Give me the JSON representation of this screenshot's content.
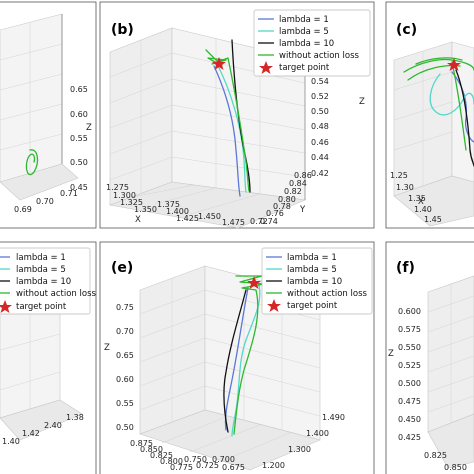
{
  "colors": {
    "lambda1": "#5b78d6",
    "lambda5": "#52d8c6",
    "lambda10": "#111111",
    "no_action_loss": "#2eb82e",
    "target": "#d62728"
  },
  "legend": {
    "lambda1": "lambda = 1",
    "lambda5": "lambda = 5",
    "lambda10": "lambda = 10",
    "no_action_loss": "without action loss",
    "target": "target point"
  },
  "panels": {
    "a": {
      "label": "",
      "z_label": "Z",
      "z_ticks": [
        "0.65",
        "0.60",
        "0.55",
        "0.50",
        "0.45"
      ],
      "bottom_ticks": [
        "0.69",
        "0.70",
        "0.71"
      ]
    },
    "b": {
      "label": "(b)",
      "x_label": "X",
      "y_label": "Y",
      "z_label": "Z",
      "z_ticks": [
        "0.54",
        "0.52",
        "0.50",
        "0.48",
        "0.46",
        "0.44",
        "0.42"
      ],
      "x_ticks": [
        "1.275",
        "1.300",
        "1.325",
        "1.350",
        "1.375",
        "1.400",
        "1.425",
        "1.450",
        "1.475"
      ],
      "y_ticks": [
        "0.86",
        "0.84",
        "0.82",
        "0.80",
        "0.78",
        "0.76",
        "0.74",
        "0.72"
      ]
    },
    "c": {
      "label": "(c)",
      "x_label": "X",
      "x_ticks": [
        "1.25",
        "1.30",
        "1.35",
        "1.40",
        "1.45"
      ]
    },
    "d": {
      "label": "",
      "bottom_ticks": [
        "1.40",
        "1.42",
        "2.40",
        "1.38"
      ]
    },
    "e": {
      "label": "(e)",
      "z_label": "Z",
      "z_ticks": [
        "0.75",
        "0.70",
        "0.65",
        "0.60",
        "0.55",
        "0.50"
      ],
      "x_ticks": [
        "0.875",
        "0.850",
        "0.825",
        "0.800",
        "0.775",
        "0.750",
        "0.725",
        "0.700",
        "0.675"
      ],
      "y_ticks": [
        "1.490",
        "1.400",
        "1.300",
        "1.200"
      ]
    },
    "f": {
      "label": "(f)",
      "z_label": "Z",
      "z_ticks": [
        "0.600",
        "0.575",
        "0.550",
        "0.525",
        "0.500",
        "0.475",
        "0.450",
        "0.425"
      ],
      "bottom_ticks": [
        "0.825",
        "0.850"
      ]
    }
  }
}
